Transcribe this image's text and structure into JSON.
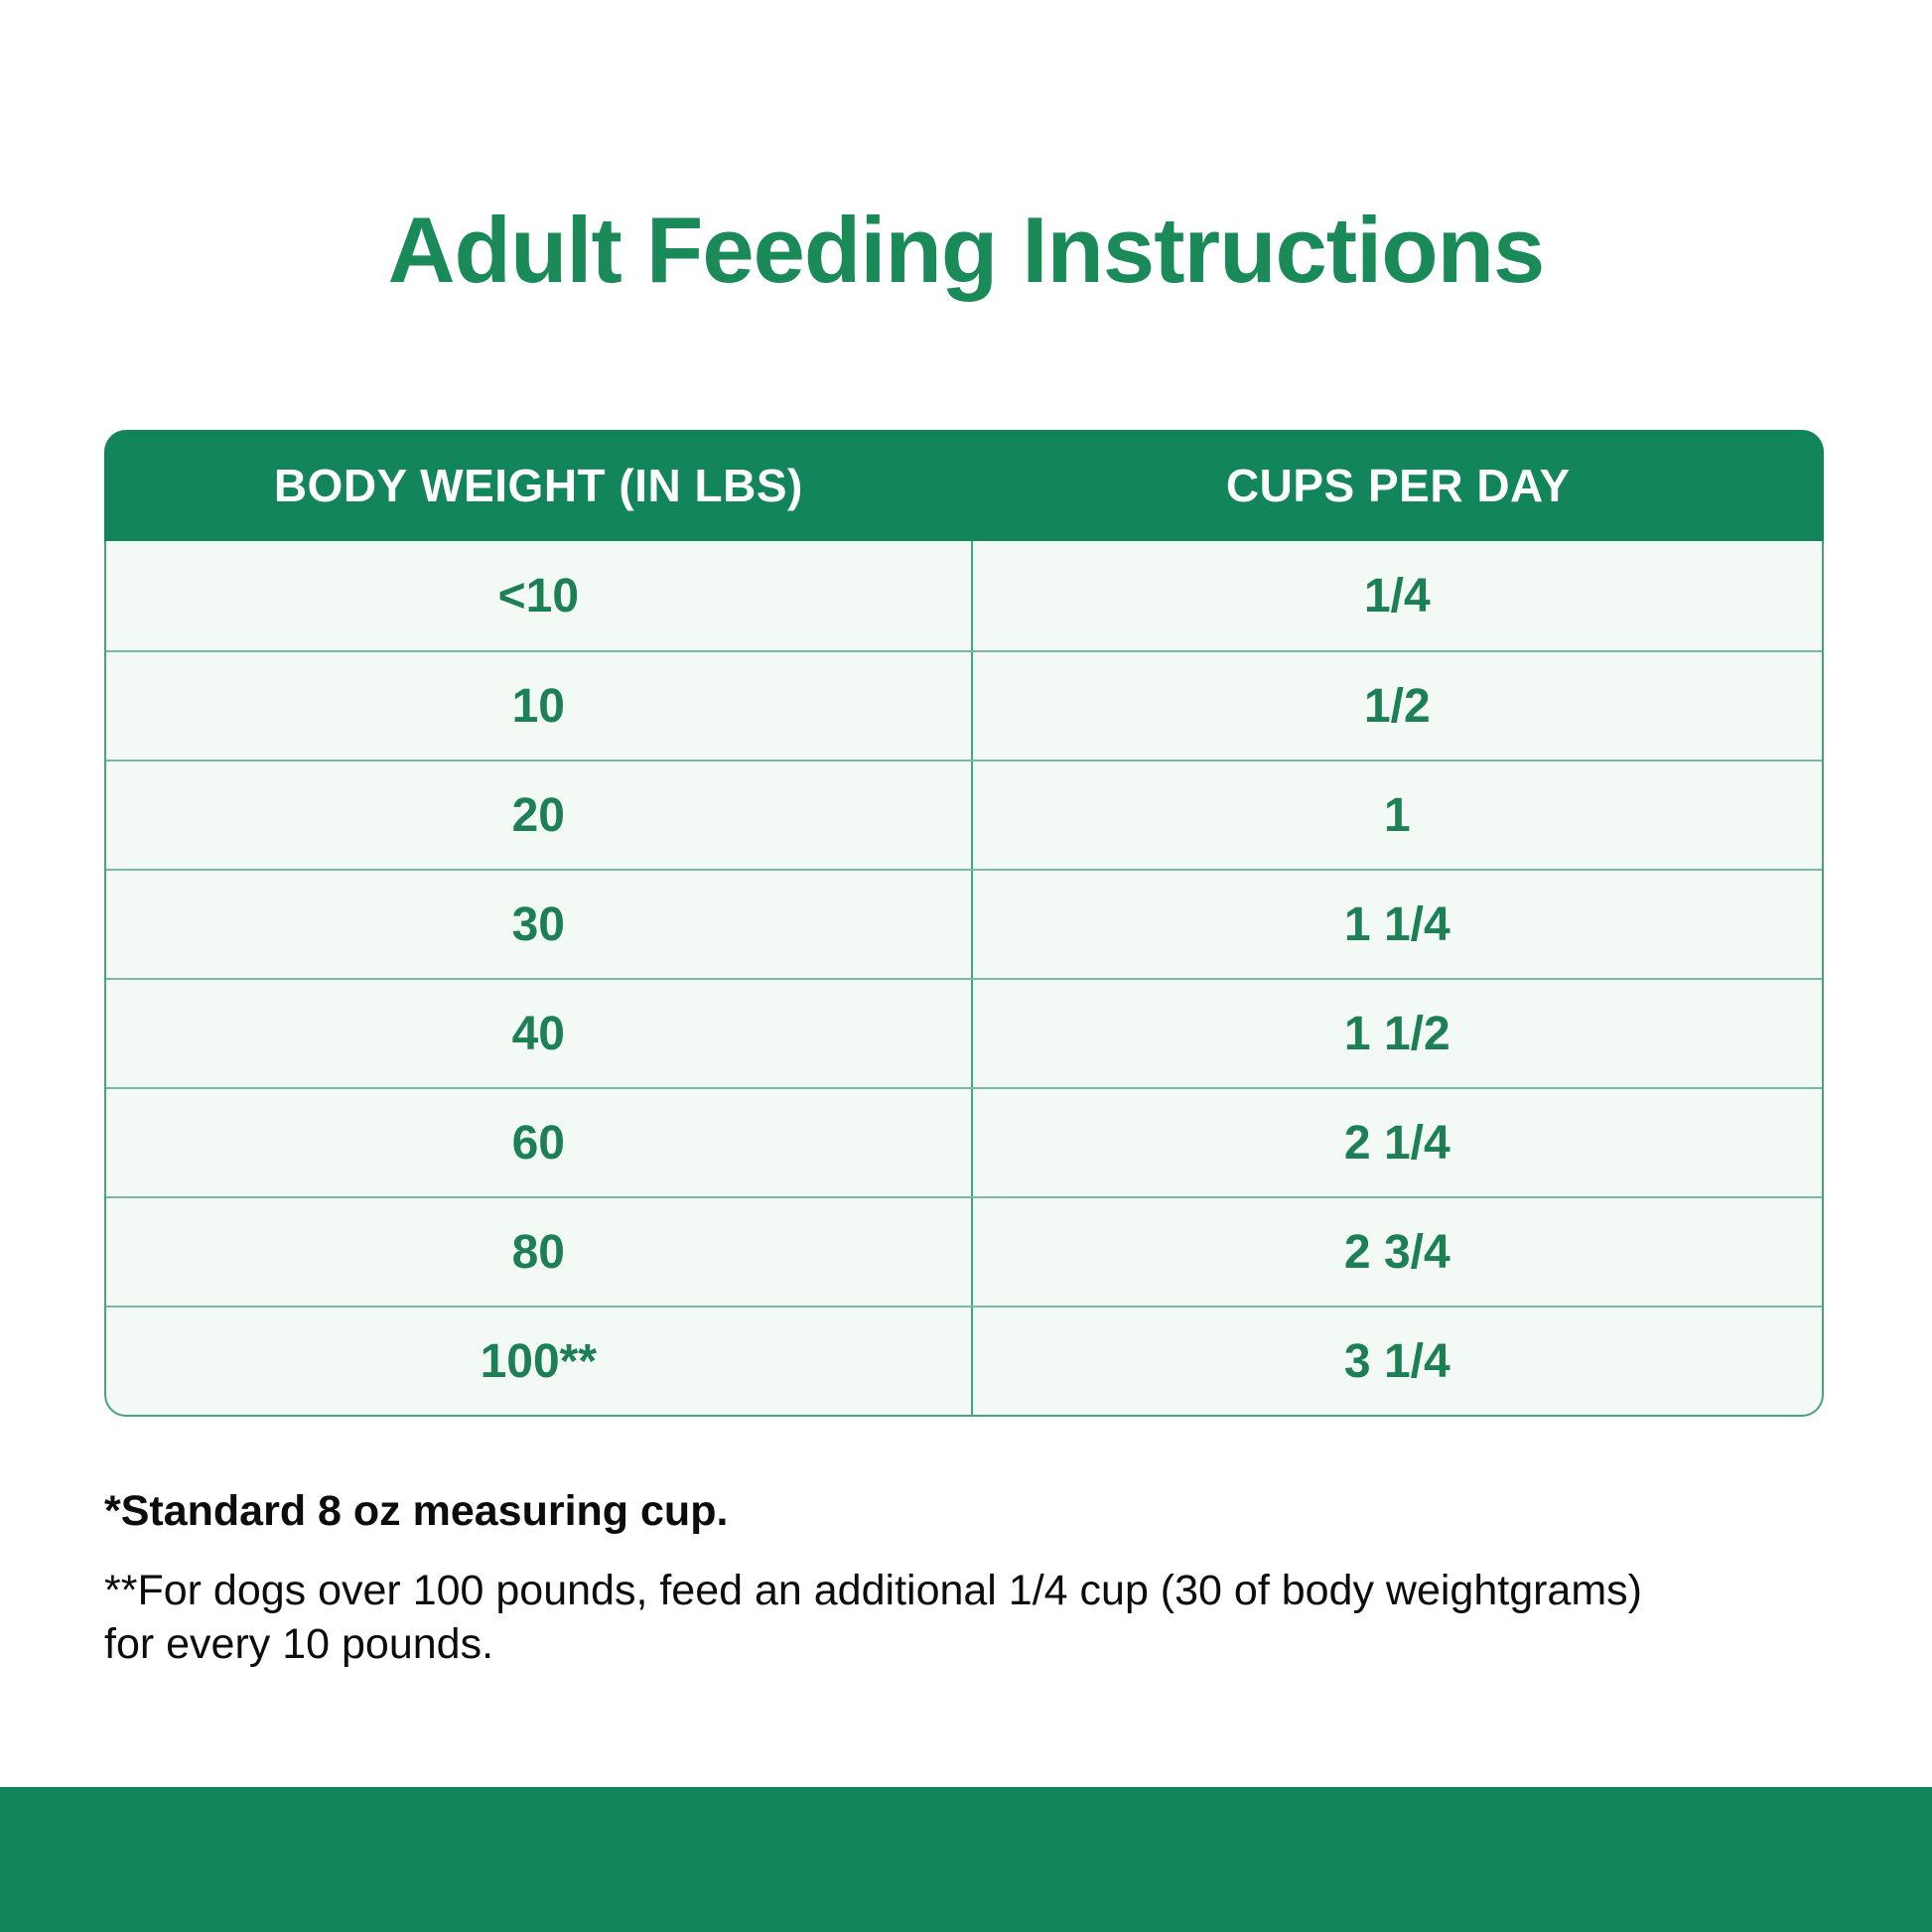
{
  "chart_data": {
    "type": "table",
    "title": "Adult Feeding Instructions",
    "columns": [
      "BODY WEIGHT (IN LBS)",
      "CUPS PER DAY"
    ],
    "rows": [
      [
        "<10",
        "1/4"
      ],
      [
        "10",
        "1/2"
      ],
      [
        "20",
        "1"
      ],
      [
        "30",
        "1 1/4"
      ],
      [
        "40",
        "1 1/2"
      ],
      [
        "60",
        "2 1/4"
      ],
      [
        "80",
        "2 3/4"
      ],
      [
        "100**",
        "3 1/4"
      ]
    ],
    "footnotes": {
      "cup_note": "*Standard 8 oz measuring cup.",
      "over100_note_line1": "**For dogs over 100 pounds, feed an additional 1/4 cup (30  of body weightgrams)",
      "over100_note_line2": "for every 10 pounds."
    },
    "layout_hints": {
      "header_style": "solid green bar, white bold text, rounded top corners",
      "body_style": "pale mint rows, green text, thin green dividers, rounded bottom corners",
      "grid": "horizontal row dividers + single center column divider"
    }
  },
  "colors": {
    "green_primary": "#12855A",
    "green_title": "#1A8A58",
    "green_cell_text": "#1C7F55",
    "row_background": "#F3FAF6",
    "header_text": "#FFFFFF",
    "footnote_text": "#0C0C0C",
    "page_background": "#FFFFFF"
  }
}
